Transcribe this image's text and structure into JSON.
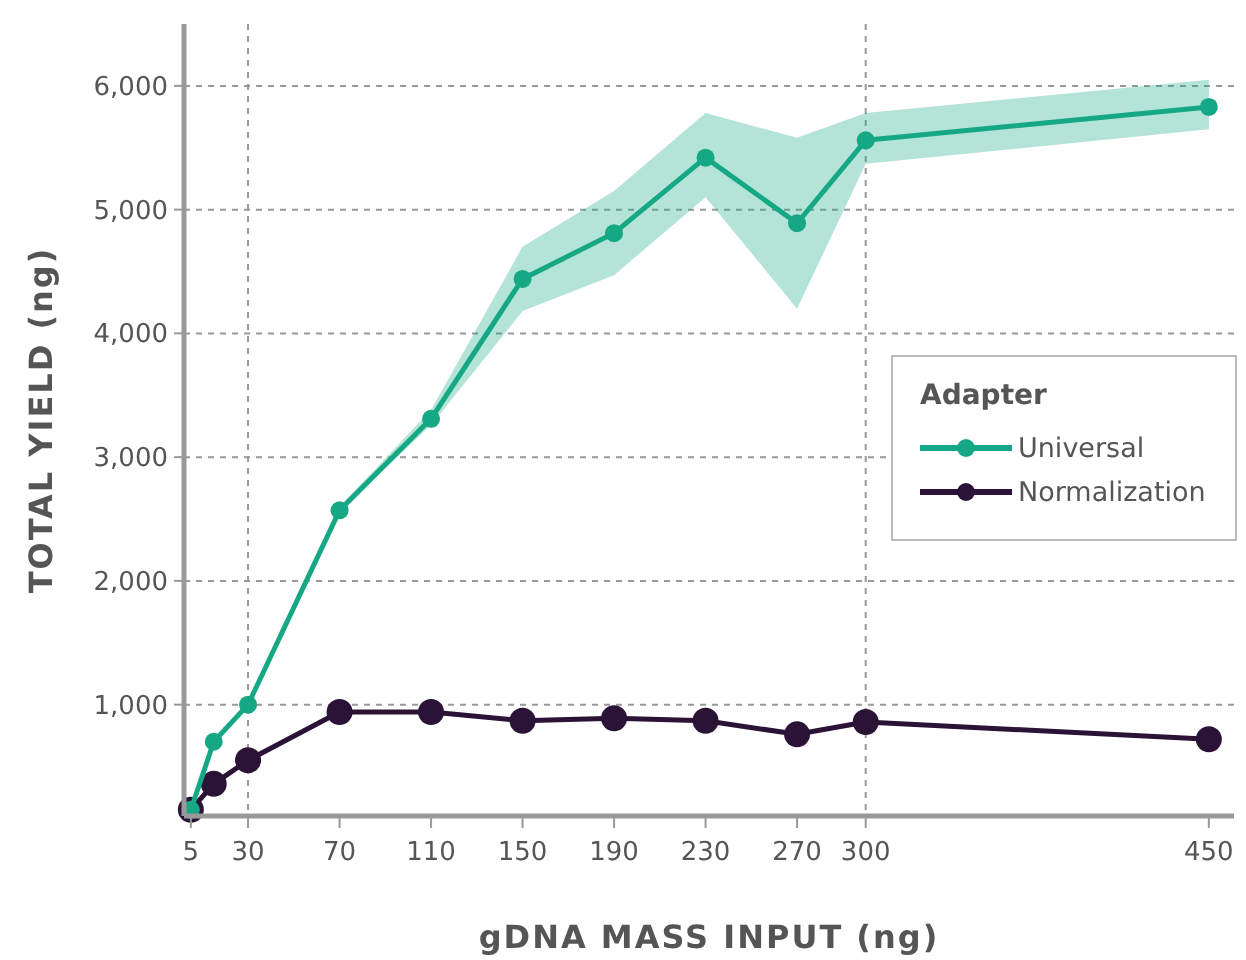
{
  "chart_data": {
    "type": "line",
    "xlabel": "gDNA MASS INPUT (ng)",
    "ylabel": "TOTAL YIELD (ng)",
    "legend_title": "Adapter",
    "legend": "right",
    "x": [
      5,
      15,
      30,
      70,
      110,
      150,
      190,
      230,
      270,
      300,
      450
    ],
    "series": [
      {
        "name": "Universal",
        "color": "#16a884",
        "values": [
          150,
          700,
          1000,
          2570,
          3310,
          4440,
          4810,
          5420,
          4890,
          5560,
          5830
        ],
        "lower": [
          150,
          700,
          1000,
          2560,
          3260,
          4180,
          4470,
          5100,
          4200,
          5370,
          5650
        ],
        "upper": [
          150,
          700,
          1000,
          2600,
          3380,
          4700,
          5150,
          5780,
          5580,
          5780,
          6050
        ]
      },
      {
        "name": "Normalization",
        "color": "#2a1336",
        "values": [
          150,
          360,
          550,
          940,
          940,
          870,
          890,
          870,
          760,
          860,
          720
        ]
      }
    ],
    "xlim": [
      2,
      461
    ],
    "ylim": [
      100,
      6500
    ],
    "xticks": [
      5,
      30,
      70,
      110,
      150,
      190,
      230,
      270,
      300,
      450
    ],
    "yticks": [
      {
        "value": 1000,
        "label": "1,000"
      },
      {
        "value": 2000,
        "label": "2,000"
      },
      {
        "value": 3000,
        "label": "3,000"
      },
      {
        "value": 4000,
        "label": "4,000"
      },
      {
        "value": 5000,
        "label": "5,000"
      },
      {
        "value": 6000,
        "label": "6,000"
      }
    ],
    "grid": "y",
    "marker": "circle",
    "line_style": "solid",
    "ref_lines": [
      {
        "axis": "x",
        "value": 30,
        "color": "#999999",
        "line_style": "dashed"
      },
      {
        "axis": "x",
        "value": 300,
        "color": "#999999",
        "line_style": "dashed"
      }
    ]
  }
}
